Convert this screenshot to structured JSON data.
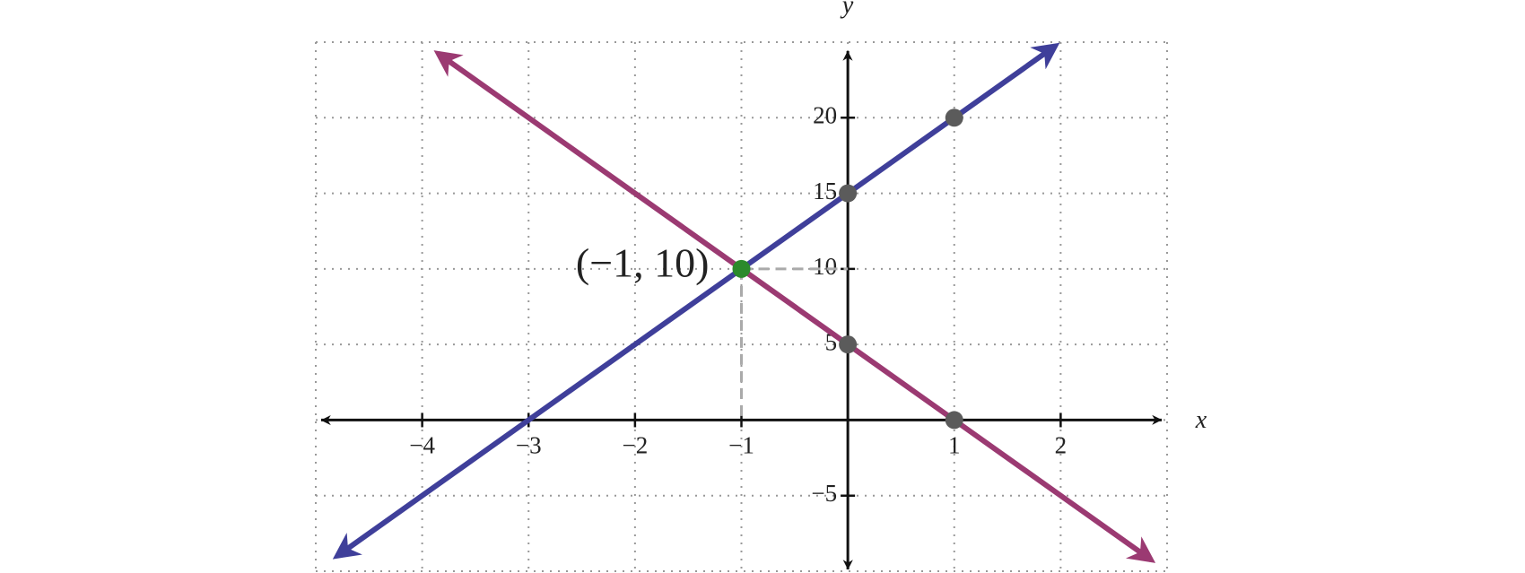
{
  "chart_data": {
    "type": "line",
    "xlabel": "x",
    "ylabel": "y",
    "xlim": [
      -5,
      3
    ],
    "ylim": [
      -10,
      25
    ],
    "xgrid": [
      -5,
      -4,
      -3,
      -2,
      -1,
      0,
      1,
      2,
      3
    ],
    "ygrid": [
      -10,
      -5,
      0,
      5,
      10,
      15,
      20,
      25
    ],
    "xticks": [
      {
        "value": -4,
        "label": "−4"
      },
      {
        "value": -3,
        "label": "−3"
      },
      {
        "value": -2,
        "label": "−2"
      },
      {
        "value": -1,
        "label": "−1"
      },
      1,
      2
    ],
    "yticks": [
      {
        "value": -5,
        "label": "−5"
      },
      5,
      10,
      15,
      20
    ],
    "series": [
      {
        "color": "#3f3f9a",
        "x": [
          -4.8,
          1.95
        ],
        "values": [
          -9,
          24.75
        ]
      },
      {
        "color": "#9b3a72",
        "x": [
          -3.85,
          2.85
        ],
        "values": [
          24.25,
          -9.25
        ]
      }
    ],
    "points": {
      "x": [
        1,
        0,
        -1,
        0,
        1
      ],
      "y": [
        20,
        15,
        10,
        5,
        0
      ],
      "colors": [
        "#5b5b5b",
        "#5b5b5b",
        "#2b8a2b",
        "#5b5b5b",
        "#5b5b5b"
      ]
    },
    "annotation": {
      "text": "(−1, 10)",
      "x": -1,
      "y": 10
    }
  }
}
